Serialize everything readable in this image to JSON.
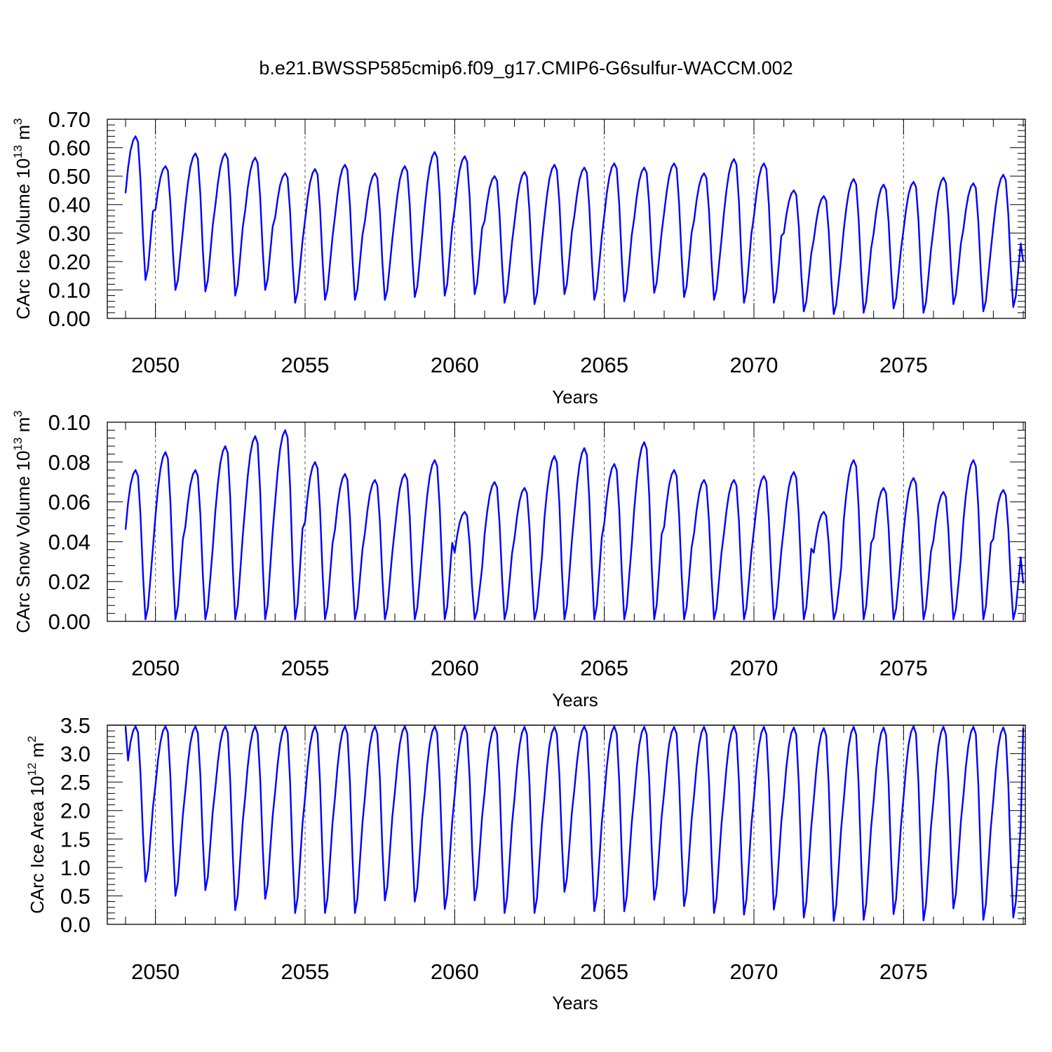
{
  "figure_title": "b.e21.BWSSP585cmip6.f09_g17.CMIP6-G6sulfur-WACCM.002",
  "colors": {
    "series": "#0000ff",
    "axes": "#000000",
    "grid": "#555555"
  },
  "chart_data": [
    {
      "type": "line",
      "title": "",
      "xlabel": "Years",
      "ylabel": {
        "text": "CArc Ice Volume 10",
        "exp": "13",
        "unit": " m",
        "unit_exp": "3"
      },
      "xlim": [
        2049.0,
        2079.0
      ],
      "ylim": [
        0.0,
        0.7
      ],
      "x_ticks": [
        2050,
        2055,
        2060,
        2065,
        2070,
        2075
      ],
      "y_ticks": [
        0.0,
        0.1,
        0.2,
        0.3,
        0.4,
        0.5,
        0.6,
        0.7
      ],
      "y_tick_labels": [
        "0.00",
        "0.10",
        "0.20",
        "0.30",
        "0.40",
        "0.50",
        "0.60",
        "0.70"
      ],
      "y_minor_step": 0.02,
      "grid": "dashed vertical at major x ticks",
      "reference_line": null,
      "series": [
        {
          "x_start": 2049.0,
          "x_step_months": 1,
          "maxima": [
            0.64,
            0.535,
            0.58,
            0.58,
            0.565,
            0.51,
            0.525,
            0.54,
            0.51,
            0.535,
            0.585,
            0.57,
            0.5,
            0.515,
            0.54,
            0.53,
            0.545,
            0.53,
            0.545,
            0.51,
            0.56,
            0.545,
            0.45,
            0.43,
            0.49,
            0.47,
            0.48,
            0.495,
            0.475,
            0.505
          ],
          "minima": [
            0.135,
            0.1,
            0.095,
            0.08,
            0.1,
            0.055,
            0.065,
            0.065,
            0.065,
            0.075,
            0.08,
            0.085,
            0.055,
            0.05,
            0.085,
            0.065,
            0.06,
            0.09,
            0.075,
            0.065,
            0.055,
            0.055,
            0.025,
            0.015,
            0.02,
            0.035,
            0.02,
            0.05,
            0.025,
            0.04
          ],
          "start_value": 0.44,
          "end_value": 0.2
        }
      ]
    },
    {
      "type": "line",
      "title": "",
      "xlabel": "Years",
      "ylabel": {
        "text": "CArc Snow Volume 10",
        "exp": "13",
        "unit": " m",
        "unit_exp": "3"
      },
      "xlim": [
        2049.0,
        2079.0
      ],
      "ylim": [
        0.0,
        0.1
      ],
      "x_ticks": [
        2050,
        2055,
        2060,
        2065,
        2070,
        2075
      ],
      "y_ticks": [
        0.0,
        0.02,
        0.04,
        0.06,
        0.08,
        0.1
      ],
      "y_tick_labels": [
        "0.00",
        "0.02",
        "0.04",
        "0.06",
        "0.08",
        "0.10"
      ],
      "y_minor_step": 0.004,
      "grid": "dashed vertical at major x ticks",
      "reference_line": null,
      "series": [
        {
          "x_start": 2049.0,
          "x_step_months": 1,
          "maxima": [
            0.076,
            0.085,
            0.076,
            0.088,
            0.093,
            0.096,
            0.08,
            0.074,
            0.071,
            0.074,
            0.081,
            0.055,
            0.07,
            0.067,
            0.083,
            0.087,
            0.079,
            0.09,
            0.076,
            0.071,
            0.071,
            0.073,
            0.075,
            0.055,
            0.081,
            0.067,
            0.072,
            0.065,
            0.081,
            0.066
          ],
          "minima": [
            0.001,
            0.001,
            0.001,
            0.001,
            0.001,
            0.001,
            0.001,
            0.001,
            0.001,
            0.001,
            0.001,
            0.001,
            0.001,
            0.001,
            0.001,
            0.001,
            0.001,
            0.001,
            0.001,
            0.001,
            0.001,
            0.001,
            0.001,
            0.001,
            0.001,
            0.001,
            0.001,
            0.001,
            0.001,
            0.001
          ],
          "start_value": 0.046,
          "end_value": 0.019
        }
      ]
    },
    {
      "type": "line",
      "title": "",
      "xlabel": "Years",
      "ylabel": {
        "text": "CArc Ice Area 10",
        "exp": "12",
        "unit": " m",
        "unit_exp": "2"
      },
      "xlim": [
        2049.0,
        2079.0
      ],
      "ylim": [
        0.0,
        3.5
      ],
      "x_ticks": [
        2050,
        2055,
        2060,
        2065,
        2070,
        2075
      ],
      "y_ticks": [
        0.0,
        0.5,
        1.0,
        1.5,
        2.0,
        2.5,
        3.0,
        3.5
      ],
      "y_tick_labels": [
        "0.0",
        "0.5",
        "1.0",
        "1.5",
        "2.0",
        "2.5",
        "3.0",
        "3.5"
      ],
      "y_minor_step": 0.1,
      "grid": "dashed vertical at major x ticks",
      "reference_line": 3.5,
      "series": [
        {
          "x_start": 2049.0,
          "x_step_months": 1,
          "maxima": [
            3.48,
            3.48,
            3.48,
            3.48,
            3.48,
            3.48,
            3.48,
            3.48,
            3.48,
            3.48,
            3.48,
            3.48,
            3.47,
            3.47,
            3.47,
            3.48,
            3.48,
            3.47,
            3.47,
            3.47,
            3.48,
            3.47,
            3.46,
            3.45,
            3.47,
            3.46,
            3.48,
            3.47,
            3.47,
            3.46
          ],
          "minima": [
            0.75,
            0.5,
            0.6,
            0.25,
            0.45,
            0.2,
            0.2,
            0.2,
            0.42,
            0.4,
            0.27,
            0.42,
            0.2,
            0.2,
            0.57,
            0.23,
            0.23,
            0.43,
            0.32,
            0.2,
            0.17,
            0.26,
            0.12,
            0.06,
            0.08,
            0.18,
            0.07,
            0.28,
            0.08,
            0.12
          ],
          "start_value": 3.48,
          "end_value": 3.45
        }
      ]
    }
  ]
}
